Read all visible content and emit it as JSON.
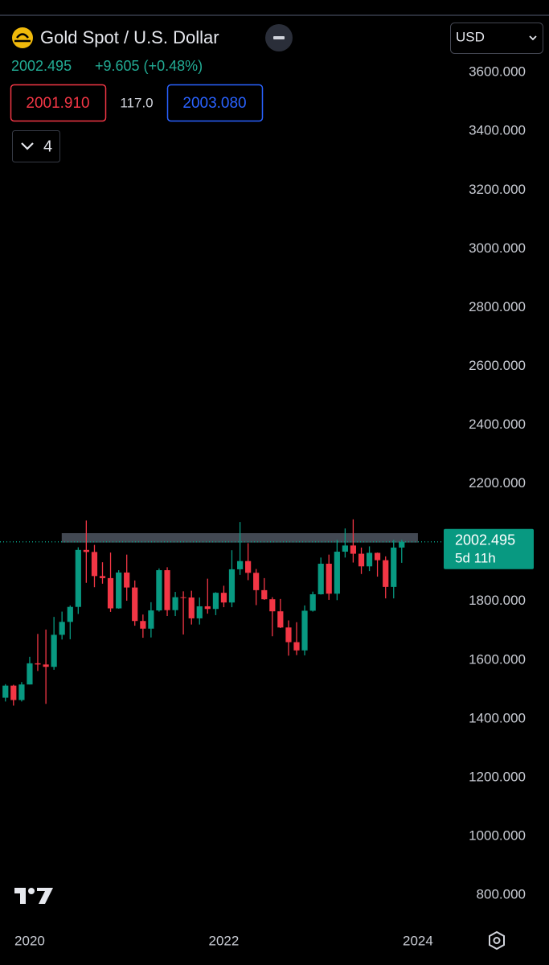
{
  "header": {
    "title": "Gold Spot / U.S. Dollar",
    "price": "2002.495",
    "change": "+9.605 (+0.48%)",
    "bid": "2001.910",
    "spread": "117.0",
    "ask": "2003.080",
    "indicators": "4",
    "currency": "USD"
  },
  "chart_data": {
    "type": "candlestick",
    "x": [
      2019.75,
      2019.833,
      2019.917,
      2020,
      2020.083,
      2020.167,
      2020.25,
      2020.333,
      2020.417,
      2020.5,
      2020.583,
      2020.667,
      2020.75,
      2020.833,
      2020.917,
      2021,
      2021.083,
      2021.167,
      2021.25,
      2021.333,
      2021.417,
      2021.5,
      2021.583,
      2021.667,
      2021.75,
      2021.833,
      2021.917,
      2022,
      2022.083,
      2022.167,
      2022.25,
      2022.333,
      2022.417,
      2022.5,
      2022.583,
      2022.667,
      2022.75,
      2022.833,
      2022.917,
      2023,
      2023.083,
      2023.167,
      2023.25,
      2023.333,
      2023.417,
      2023.5,
      2023.583,
      2023.667,
      2023.75,
      2023.833
    ],
    "open": [
      1472,
      1513,
      1464,
      1517,
      1589,
      1585,
      1577,
      1686,
      1730,
      1781,
      1975,
      1968,
      1886,
      1879,
      1776,
      1898,
      1847,
      1733,
      1707,
      1769,
      1906,
      1770,
      1814,
      1813,
      1742,
      1783,
      1774,
      1829,
      1796,
      1909,
      1937,
      1897,
      1838,
      1807,
      1766,
      1711,
      1661,
      1633,
      1768,
      1824,
      1928,
      1826,
      1969,
      1990,
      1962,
      1919,
      1965,
      1940,
      1849,
      1983
    ],
    "high": [
      1518,
      1516,
      1525,
      1611,
      1689,
      1704,
      1747,
      1765,
      1786,
      1984,
      2075,
      1992,
      1933,
      1966,
      1906,
      1959,
      1871,
      1755,
      1797,
      1912,
      1916,
      1832,
      1834,
      1836,
      1813,
      1877,
      1831,
      1853,
      1974,
      2070,
      1998,
      1910,
      1879,
      1814,
      1808,
      1735,
      1729,
      1786,
      1833,
      1949,
      1959,
      2009,
      2048,
      2079,
      1983,
      1987,
      1966,
      1953,
      2009,
      2009
    ],
    "low": [
      1459,
      1445,
      1459,
      1517,
      1563,
      1451,
      1567,
      1670,
      1671,
      1757,
      1863,
      1848,
      1860,
      1764,
      1775,
      1802,
      1717,
      1676,
      1677,
      1765,
      1750,
      1750,
      1687,
      1721,
      1721,
      1758,
      1753,
      1780,
      1780,
      1890,
      1872,
      1787,
      1805,
      1681,
      1709,
      1615,
      1617,
      1616,
      1765,
      1823,
      1805,
      1804,
      1949,
      1932,
      1893,
      1903,
      1884,
      1810,
      1810,
      1931
    ],
    "close": [
      1513,
      1464,
      1517,
      1589,
      1585,
      1577,
      1686,
      1730,
      1781,
      1975,
      1968,
      1886,
      1879,
      1776,
      1898,
      1847,
      1733,
      1707,
      1769,
      1906,
      1770,
      1814,
      1813,
      1742,
      1783,
      1774,
      1829,
      1796,
      1909,
      1937,
      1897,
      1838,
      1807,
      1766,
      1711,
      1661,
      1633,
      1768,
      1824,
      1928,
      1826,
      1969,
      1990,
      1962,
      1919,
      1965,
      1940,
      1849,
      1983,
      2002.495
    ],
    "up_color": "#089981",
    "down_color": "#f23645",
    "ylim": [
      699,
      3792
    ],
    "yticks": [
      {
        "value": 800,
        "label": "800.000"
      },
      {
        "value": 1000,
        "label": "1000.000"
      },
      {
        "value": 1200,
        "label": "1200.000"
      },
      {
        "value": 1400,
        "label": "1400.000"
      },
      {
        "value": 1600,
        "label": "1600.000"
      },
      {
        "value": 1800,
        "label": "1800.000"
      },
      {
        "value": 2000,
        "label": "2000.000"
      },
      {
        "value": 2200,
        "label": "2200.000"
      },
      {
        "value": 2400,
        "label": "2400.000"
      },
      {
        "value": 2600,
        "label": "2600.000"
      },
      {
        "value": 2800,
        "label": "2800.000"
      },
      {
        "value": 3000,
        "label": "3000.000"
      },
      {
        "value": 3200,
        "label": "3200.000"
      },
      {
        "value": 3400,
        "label": "3400.000"
      },
      {
        "value": 3600,
        "label": "3600.000"
      }
    ],
    "xlim": [
      2019.694,
      2024.249
    ],
    "xticks": [
      2020,
      2022,
      2024
    ],
    "last_price": 2002.495,
    "countdown": "5d 11h",
    "zone": {
      "x": [
        2020.33,
        2024
      ],
      "y": [
        2000,
        2032
      ]
    }
  }
}
